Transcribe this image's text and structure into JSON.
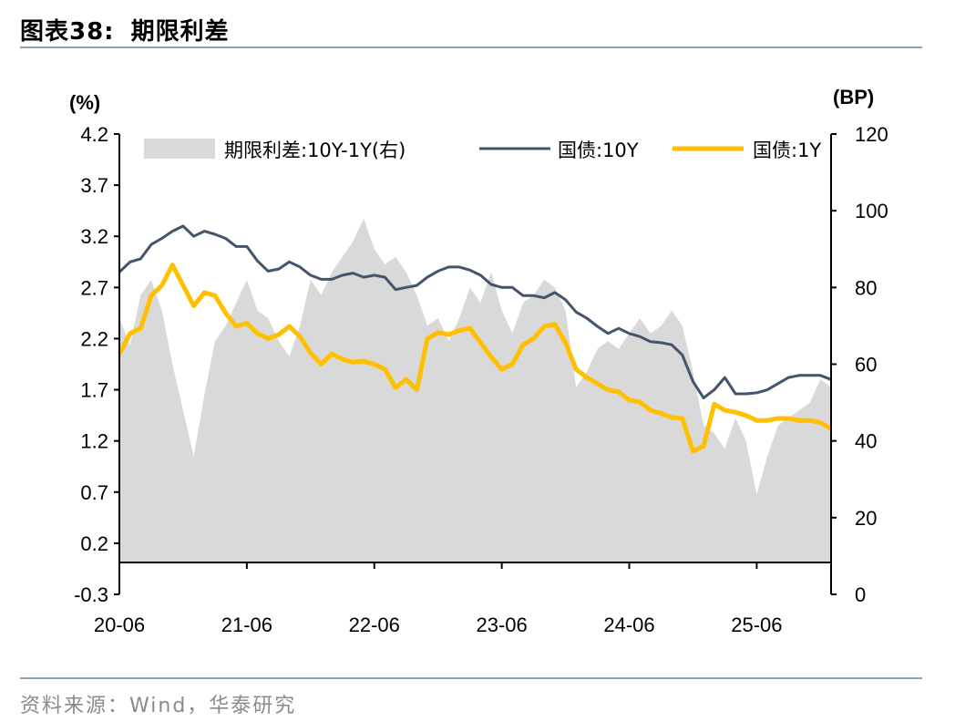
{
  "figure": {
    "label": "图表38:",
    "title": "期限利差",
    "source": "资料来源：Wind，华泰研究"
  },
  "chart_data": {
    "type": "line",
    "left_unit": "(%)",
    "right_unit": "(BP)",
    "left_axis": {
      "ylim": [
        -0.3,
        4.2
      ],
      "ticks": [
        "4.2",
        "3.7",
        "3.2",
        "2.7",
        "2.2",
        "1.7",
        "1.2",
        "0.7",
        "0.2",
        "-0.3"
      ]
    },
    "right_axis": {
      "ylim": [
        0,
        120
      ],
      "ticks": [
        "120",
        "100",
        "80",
        "60",
        "40",
        "20",
        "0"
      ]
    },
    "x_ticks": [
      "20-06",
      "21-06",
      "22-06",
      "23-06",
      "24-06",
      "25-06"
    ],
    "x_range": [
      "2020-06",
      "2026-01"
    ],
    "legend_placement": "top",
    "colors": {
      "spread": "#d9d9d9",
      "cgb10y": "#44546a",
      "cgb1y": "#ffc000"
    },
    "series": [
      {
        "name": "期限利差:10Y-1Y(右)",
        "kind": "area",
        "axis": "right",
        "x": [
          "2020-06",
          "2020-07",
          "2020-08",
          "2020-09",
          "2020-10",
          "2020-11",
          "2020-12",
          "2021-01",
          "2021-02",
          "2021-03",
          "2021-04",
          "2021-05",
          "2021-06",
          "2021-07",
          "2021-08",
          "2021-09",
          "2021-10",
          "2021-11",
          "2021-12",
          "2022-01",
          "2022-02",
          "2022-03",
          "2022-04",
          "2022-05",
          "2022-06",
          "2022-07",
          "2022-08",
          "2022-09",
          "2022-10",
          "2022-11",
          "2022-12",
          "2023-01",
          "2023-02",
          "2023-03",
          "2023-04",
          "2023-05",
          "2023-06",
          "2023-07",
          "2023-08",
          "2023-09",
          "2023-10",
          "2023-11",
          "2023-12",
          "2024-01",
          "2024-02",
          "2024-03",
          "2024-04",
          "2024-05",
          "2024-06",
          "2024-07",
          "2024-08",
          "2024-09",
          "2024-10",
          "2024-11",
          "2024-12",
          "2025-01",
          "2025-02",
          "2025-03",
          "2025-04",
          "2025-05",
          "2025-06",
          "2025-07",
          "2025-08",
          "2025-09",
          "2025-10",
          "2025-11",
          "2025-12",
          "2026-01"
        ],
        "values": [
          72,
          65,
          78,
          82,
          74,
          60,
          48,
          36,
          52,
          66,
          70,
          76,
          82,
          74,
          72,
          66,
          62,
          70,
          82,
          78,
          84,
          88,
          92,
          98,
          90,
          86,
          88,
          84,
          78,
          70,
          72,
          66,
          72,
          80,
          76,
          84,
          74,
          68,
          76,
          78,
          82,
          80,
          74,
          54,
          58,
          64,
          66,
          64,
          68,
          72,
          68,
          70,
          74,
          70,
          58,
          44,
          42,
          38,
          46,
          40,
          26,
          36,
          44,
          46,
          48,
          50,
          56,
          54
        ]
      },
      {
        "name": "国债:10Y",
        "kind": "line",
        "axis": "left",
        "x": [
          "2020-06",
          "2020-07",
          "2020-08",
          "2020-09",
          "2020-10",
          "2020-11",
          "2020-12",
          "2021-01",
          "2021-02",
          "2021-03",
          "2021-04",
          "2021-05",
          "2021-06",
          "2021-07",
          "2021-08",
          "2021-09",
          "2021-10",
          "2021-11",
          "2021-12",
          "2022-01",
          "2022-02",
          "2022-03",
          "2022-04",
          "2022-05",
          "2022-06",
          "2022-07",
          "2022-08",
          "2022-09",
          "2022-10",
          "2022-11",
          "2022-12",
          "2023-01",
          "2023-02",
          "2023-03",
          "2023-04",
          "2023-05",
          "2023-06",
          "2023-07",
          "2023-08",
          "2023-09",
          "2023-10",
          "2023-11",
          "2023-12",
          "2024-01",
          "2024-02",
          "2024-03",
          "2024-04",
          "2024-05",
          "2024-06",
          "2024-07",
          "2024-08",
          "2024-09",
          "2024-10",
          "2024-11",
          "2024-12",
          "2025-01",
          "2025-02",
          "2025-03",
          "2025-04",
          "2025-05",
          "2025-06",
          "2025-07",
          "2025-08",
          "2025-09",
          "2025-10",
          "2025-11",
          "2025-12",
          "2026-01"
        ],
        "values": [
          2.85,
          2.95,
          2.98,
          3.12,
          3.18,
          3.25,
          3.3,
          3.2,
          3.25,
          3.22,
          3.18,
          3.1,
          3.1,
          2.96,
          2.86,
          2.88,
          2.95,
          2.9,
          2.82,
          2.78,
          2.78,
          2.82,
          2.84,
          2.8,
          2.82,
          2.8,
          2.68,
          2.7,
          2.72,
          2.8,
          2.86,
          2.9,
          2.9,
          2.87,
          2.82,
          2.73,
          2.7,
          2.7,
          2.62,
          2.62,
          2.6,
          2.65,
          2.58,
          2.46,
          2.4,
          2.32,
          2.25,
          2.3,
          2.25,
          2.22,
          2.17,
          2.16,
          2.14,
          2.04,
          1.78,
          1.62,
          1.7,
          1.82,
          1.66,
          1.66,
          1.67,
          1.7,
          1.76,
          1.82,
          1.84,
          1.84,
          1.84,
          1.8
        ]
      },
      {
        "name": "国债:1Y",
        "kind": "line",
        "axis": "left",
        "x": [
          "2020-06",
          "2020-07",
          "2020-08",
          "2020-09",
          "2020-10",
          "2020-11",
          "2020-12",
          "2021-01",
          "2021-02",
          "2021-03",
          "2021-04",
          "2021-05",
          "2021-06",
          "2021-07",
          "2021-08",
          "2021-09",
          "2021-10",
          "2021-11",
          "2021-12",
          "2022-01",
          "2022-02",
          "2022-03",
          "2022-04",
          "2022-05",
          "2022-06",
          "2022-07",
          "2022-08",
          "2022-09",
          "2022-10",
          "2022-11",
          "2022-12",
          "2023-01",
          "2023-02",
          "2023-03",
          "2023-04",
          "2023-05",
          "2023-06",
          "2023-07",
          "2023-08",
          "2023-09",
          "2023-10",
          "2023-11",
          "2023-12",
          "2024-01",
          "2024-02",
          "2024-03",
          "2024-04",
          "2024-05",
          "2024-06",
          "2024-07",
          "2024-08",
          "2024-09",
          "2024-10",
          "2024-11",
          "2024-12",
          "2025-01",
          "2025-02",
          "2025-03",
          "2025-04",
          "2025-05",
          "2025-06",
          "2025-07",
          "2025-08",
          "2025-09",
          "2025-10",
          "2025-11",
          "2025-12",
          "2026-01"
        ],
        "values": [
          2.05,
          2.25,
          2.3,
          2.62,
          2.72,
          2.92,
          2.72,
          2.52,
          2.65,
          2.62,
          2.45,
          2.32,
          2.35,
          2.25,
          2.2,
          2.24,
          2.32,
          2.22,
          2.06,
          1.95,
          2.05,
          2.0,
          1.97,
          1.98,
          1.95,
          1.9,
          1.72,
          1.8,
          1.7,
          2.2,
          2.26,
          2.24,
          2.28,
          2.3,
          2.16,
          2.02,
          1.9,
          1.95,
          2.14,
          2.2,
          2.32,
          2.34,
          2.16,
          1.9,
          1.82,
          1.76,
          1.7,
          1.68,
          1.6,
          1.58,
          1.5,
          1.47,
          1.43,
          1.42,
          1.1,
          1.15,
          1.56,
          1.5,
          1.48,
          1.45,
          1.4,
          1.4,
          1.42,
          1.42,
          1.4,
          1.4,
          1.38,
          1.32
        ]
      }
    ]
  }
}
